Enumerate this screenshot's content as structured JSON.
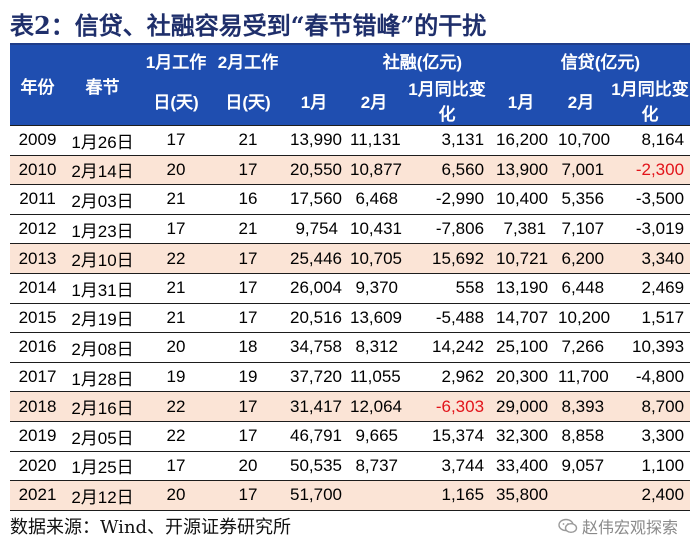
{
  "title": "表2：信贷、社融容易受到“春节错峰”的干扰",
  "table": {
    "headers": {
      "year": "年份",
      "spring": "春节",
      "jan_work_1": "1月工作",
      "jan_work_2": "日(天)",
      "feb_work_1": "2月工作",
      "feb_work_2": "日(天)",
      "tsf_group": "社融(亿元)",
      "loan_group": "信贷(亿元)",
      "tsf_jan": "1月",
      "tsf_feb": "2月",
      "tsf_yoy": "1月同比变化",
      "loan_jan": "1月",
      "loan_feb": "2月",
      "loan_yoy": "1月同比变化"
    },
    "rows": [
      {
        "year": "2009",
        "date": "1月26日",
        "jan_days": "17",
        "feb_days": "21",
        "tsf_jan": "13,990",
        "tsf_feb": "11,131",
        "tsf_yoy": "3,131",
        "loan_jan": "16,200",
        "loan_feb": "10,700",
        "loan_yoy": "8,164"
      },
      {
        "year": "2010",
        "date": "2月14日",
        "jan_days": "20",
        "feb_days": "17",
        "tsf_jan": "20,550",
        "tsf_feb": "10,877",
        "tsf_yoy": "6,560",
        "loan_jan": "13,900",
        "loan_feb": "7,001",
        "loan_yoy": "-2,300"
      },
      {
        "year": "2011",
        "date": "2月03日",
        "jan_days": "21",
        "feb_days": "16",
        "tsf_jan": "17,560",
        "tsf_feb": "6,468",
        "tsf_yoy": "-2,990",
        "loan_jan": "10,400",
        "loan_feb": "5,356",
        "loan_yoy": "-3,500"
      },
      {
        "year": "2012",
        "date": "1月23日",
        "jan_days": "17",
        "feb_days": "21",
        "tsf_jan": "9,754",
        "tsf_feb": "10,431",
        "tsf_yoy": "-7,806",
        "loan_jan": "7,381",
        "loan_feb": "7,107",
        "loan_yoy": "-3,019"
      },
      {
        "year": "2013",
        "date": "2月10日",
        "jan_days": "22",
        "feb_days": "17",
        "tsf_jan": "25,446",
        "tsf_feb": "10,705",
        "tsf_yoy": "15,692",
        "loan_jan": "10,721",
        "loan_feb": "6,200",
        "loan_yoy": "3,340"
      },
      {
        "year": "2014",
        "date": "1月31日",
        "jan_days": "21",
        "feb_days": "17",
        "tsf_jan": "26,004",
        "tsf_feb": "9,370",
        "tsf_yoy": "558",
        "loan_jan": "13,190",
        "loan_feb": "6,448",
        "loan_yoy": "2,469"
      },
      {
        "year": "2015",
        "date": "2月19日",
        "jan_days": "21",
        "feb_days": "17",
        "tsf_jan": "20,516",
        "tsf_feb": "13,609",
        "tsf_yoy": "-5,488",
        "loan_jan": "14,707",
        "loan_feb": "10,200",
        "loan_yoy": "1,517"
      },
      {
        "year": "2016",
        "date": "2月08日",
        "jan_days": "20",
        "feb_days": "18",
        "tsf_jan": "34,758",
        "tsf_feb": "8,312",
        "tsf_yoy": "14,242",
        "loan_jan": "25,100",
        "loan_feb": "7,266",
        "loan_yoy": "10,393"
      },
      {
        "year": "2017",
        "date": "1月28日",
        "jan_days": "19",
        "feb_days": "19",
        "tsf_jan": "37,720",
        "tsf_feb": "11,055",
        "tsf_yoy": "2,962",
        "loan_jan": "20,300",
        "loan_feb": "11,700",
        "loan_yoy": "-4,800"
      },
      {
        "year": "2018",
        "date": "2月16日",
        "jan_days": "22",
        "feb_days": "17",
        "tsf_jan": "31,417",
        "tsf_feb": "12,064",
        "tsf_yoy": "-6,303",
        "loan_jan": "29,000",
        "loan_feb": "8,393",
        "loan_yoy": "8,700"
      },
      {
        "year": "2019",
        "date": "2月05日",
        "jan_days": "22",
        "feb_days": "17",
        "tsf_jan": "46,791",
        "tsf_feb": "9,665",
        "tsf_yoy": "15,374",
        "loan_jan": "32,300",
        "loan_feb": "8,858",
        "loan_yoy": "3,300"
      },
      {
        "year": "2020",
        "date": "1月25日",
        "jan_days": "17",
        "feb_days": "20",
        "tsf_jan": "50,535",
        "tsf_feb": "8,737",
        "tsf_yoy": "3,744",
        "loan_jan": "33,400",
        "loan_feb": "9,057",
        "loan_yoy": "1,100"
      },
      {
        "year": "2021",
        "date": "2月12日",
        "jan_days": "20",
        "feb_days": "17",
        "tsf_jan": "51,700",
        "tsf_feb": "",
        "tsf_yoy": "1,165",
        "loan_jan": "35,800",
        "loan_feb": "",
        "loan_yoy": "2,400"
      }
    ]
  },
  "source": "数据来源：Wind、开源证券研究所",
  "watermark": "赵伟宏观探索",
  "colors": {
    "header_bg": "#1f4eb0",
    "highlight_row": "#fbe4d6",
    "negative_highlight": "#e2141a"
  }
}
